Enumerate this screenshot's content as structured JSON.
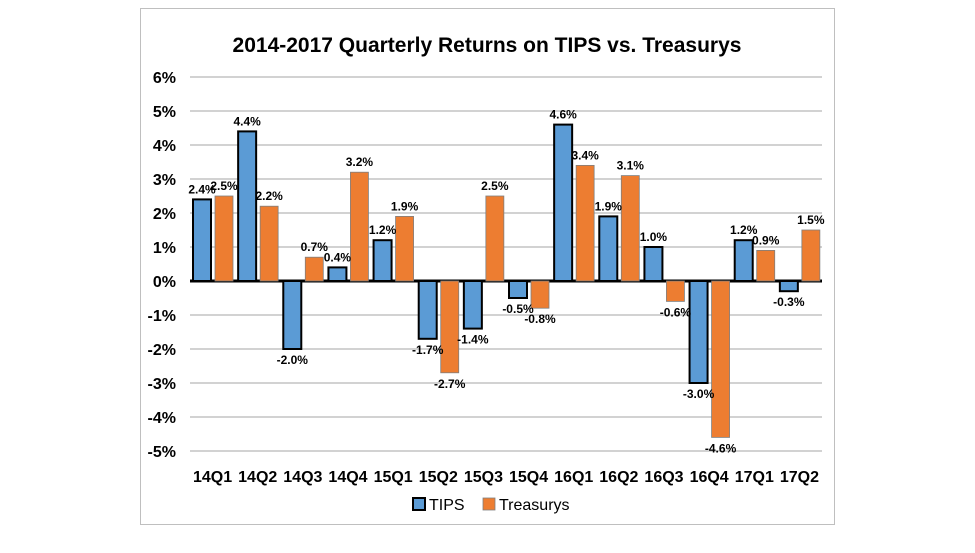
{
  "chart_data": {
    "type": "bar",
    "title": "2014-2017 Quarterly Returns on TIPS vs. Treasurys",
    "xlabel": "",
    "ylabel": "",
    "categories": [
      "14Q1",
      "14Q2",
      "14Q3",
      "14Q4",
      "15Q1",
      "15Q2",
      "15Q3",
      "15Q4",
      "16Q1",
      "16Q2",
      "16Q3",
      "16Q4",
      "17Q1",
      "17Q2"
    ],
    "series": [
      {
        "name": "TIPS",
        "color": "#5B9BD5",
        "values": [
          2.4,
          4.4,
          -2.0,
          0.4,
          1.2,
          -1.7,
          -1.4,
          -0.5,
          4.6,
          1.9,
          1.0,
          -3.0,
          1.2,
          -0.3
        ]
      },
      {
        "name": "Treasurys",
        "color": "#ED7D31",
        "values": [
          2.5,
          2.2,
          0.7,
          3.2,
          1.9,
          -2.7,
          2.5,
          -0.8,
          3.4,
          3.1,
          -0.6,
          -4.6,
          0.9,
          1.5
        ]
      }
    ],
    "ylim": [
      -5,
      6
    ],
    "yticks": [
      "-5%",
      "-4%",
      "-3%",
      "-2%",
      "-1%",
      "0%",
      "1%",
      "2%",
      "3%",
      "4%",
      "5%",
      "6%"
    ],
    "grid": true,
    "legend": "bottom",
    "data_label_format": "percent, 1 decimal"
  }
}
